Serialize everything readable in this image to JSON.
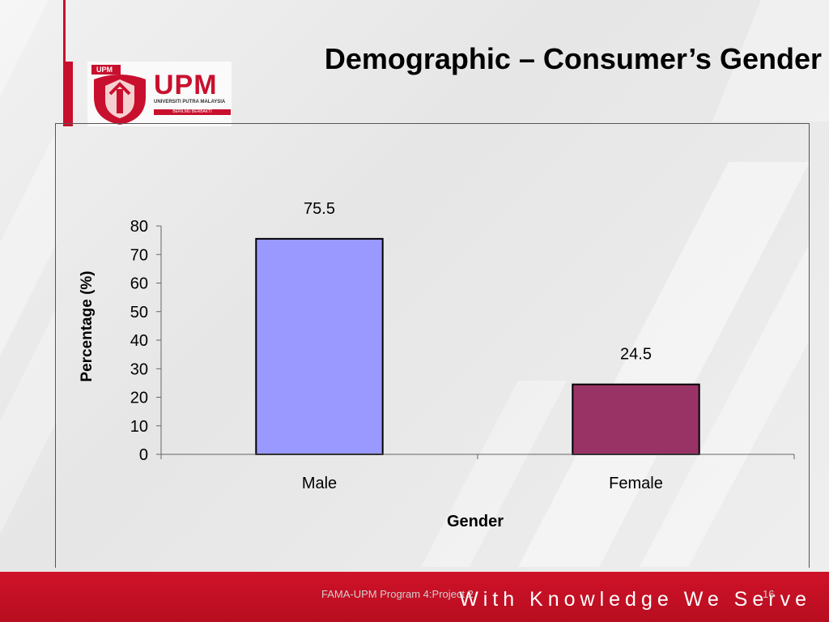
{
  "slide": {
    "title": "Demographic – Consumer’s Gender",
    "footer_note": "FAMA-UPM Program 4:Project 2",
    "slide_number": "16",
    "motto": "With Knowledge We Serve"
  },
  "logo": {
    "seal_label": "UPM",
    "wordmark": "UPM",
    "subtitle": "UNIVERSITI PUTRA MALAYSIA",
    "tagline": "BERILMU BERBAKTI"
  },
  "colors": {
    "accent_red": "#c8102e",
    "male_bar": "#9999ff",
    "female_bar": "#993366"
  },
  "chart_data": {
    "type": "bar",
    "categories": [
      "Male",
      "Female"
    ],
    "values": [
      75.5,
      24.5
    ],
    "data_labels": [
      "75.5",
      "24.5"
    ],
    "title": "",
    "xlabel": "Gender",
    "ylabel": "Percentage  (%)",
    "ylim": [
      0,
      80
    ],
    "yticks": [
      0,
      10,
      20,
      30,
      40,
      50,
      60,
      70,
      80
    ],
    "grid": false,
    "legend": "none"
  }
}
